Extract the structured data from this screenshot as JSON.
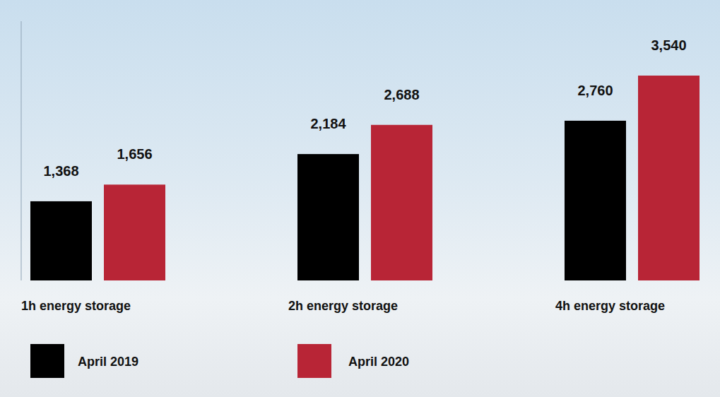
{
  "chart_data": {
    "type": "bar",
    "categories": [
      "1h energy storage",
      "2h energy storage",
      "4h energy storage"
    ],
    "series": [
      {
        "name": "April 2019",
        "color": "#000000",
        "values": [
          1368,
          2184,
          2760
        ],
        "value_labels": [
          "1,368",
          "2,184",
          "2,760"
        ]
      },
      {
        "name": "April 2020",
        "color": "#b82536",
        "values": [
          1656,
          2688,
          3540
        ],
        "value_labels": [
          "1,656",
          "2,688",
          "3,540"
        ]
      }
    ],
    "ylim": [
      0,
      4480
    ],
    "data_labels": true,
    "tick_labels": "x",
    "legend": "bottom-left"
  }
}
